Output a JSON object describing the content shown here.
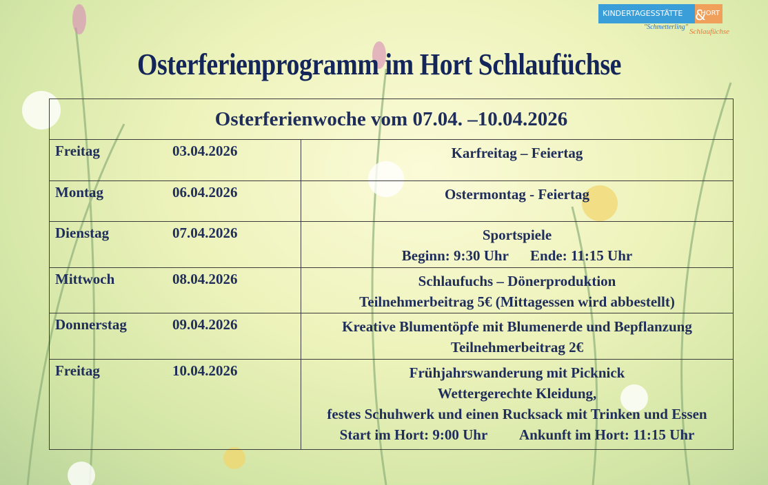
{
  "logo": {
    "kita": "KINDERTAGESSTÄTTE",
    "kita_name": "\"Schmetterling\"",
    "amp": "&",
    "hort": "HORT",
    "hort_name": "Schlaufüchse"
  },
  "title": "Osterferienprogramm im Hort Schlaufüchse",
  "table": {
    "header": "Osterferienwoche vom 07.04. –10.04.2026",
    "rows": [
      {
        "day": "Freitag",
        "date": "03.04.2026",
        "lines": [
          "Karfreitag – Feiertag"
        ]
      },
      {
        "day": "Montag",
        "date": "06.04.2026",
        "lines": [
          "Ostermontag - Feiertag"
        ]
      },
      {
        "day": "Dienstag",
        "date": "07.04.2026",
        "lines": [
          "Sportspiele",
          "Beginn: 9:30 Uhr      Ende: 11:15 Uhr"
        ]
      },
      {
        "day": "Mittwoch",
        "date": "08.04.2026",
        "lines": [
          "Schlaufuchs – Dönerproduktion",
          "Teilnehmerbeitrag 5€ (Mittagessen wird abbestellt)"
        ]
      },
      {
        "day": "Donnerstag",
        "date": "09.04.2026",
        "lines": [
          "Kreative Blumentöpfe mit Blumenerde und Bepflanzung",
          "Teilnehmerbeitrag 2€"
        ]
      },
      {
        "day": "Freitag",
        "date": "10.04.2026",
        "lines": [
          "Frühjahrswanderung mit Picknick",
          "Wettergerechte Kleidung,",
          "festes Schuhwerk und einen Rucksack mit Trinken und Essen",
          "Start im Hort: 9:00 Uhr         Ankunft im Hort: 11:15 Uhr"
        ]
      }
    ]
  }
}
